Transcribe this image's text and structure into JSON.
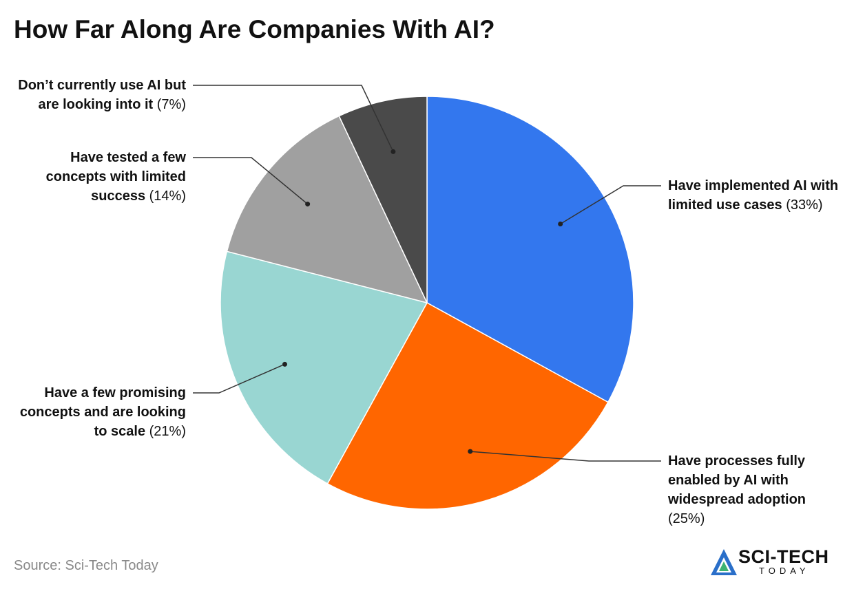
{
  "chart_data": {
    "type": "pie",
    "title": "How Far Along Are Companies With AI?",
    "categories": [
      "Have implemented AI with limited use cases",
      "Have processes fully enabled by AI with widespread adoption",
      "Have a few promising concepts and are looking to scale",
      "Have tested a few concepts with limited success",
      "Don’t currently use AI but are looking into it"
    ],
    "values": [
      33,
      25,
      21,
      14,
      7
    ],
    "value_labels": [
      "(33%)",
      "(25%)",
      "(21%)",
      "(14%)",
      "(7%)"
    ],
    "colors": [
      "#3377ee",
      "#ff6600",
      "#99d6d2",
      "#a0a0a0",
      "#4a4a4a"
    ],
    "source": "Source: Sci-Tech Today",
    "logo": {
      "name": "SCI-TECH",
      "sub": "TODAY"
    }
  }
}
